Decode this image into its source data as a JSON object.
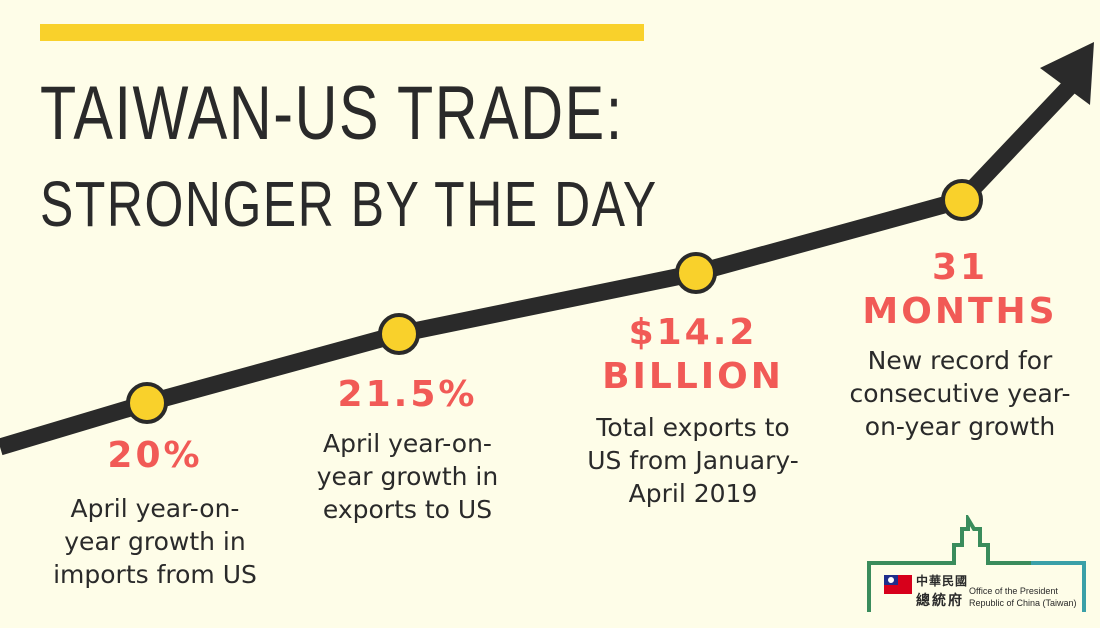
{
  "title": {
    "line1": "TAIWAN-US TRADE:",
    "line2": "STRONGER BY THE DAY"
  },
  "stats": [
    {
      "value": "20%",
      "description": [
        "April year-on-",
        "year growth in",
        "imports from US"
      ]
    },
    {
      "value": "21.5%",
      "description": [
        "April year-on-",
        "year growth in",
        "exports to US"
      ]
    },
    {
      "value": [
        "$14.2",
        "BILLION"
      ],
      "description": [
        "Total exports to",
        "US from January-",
        "April 2019"
      ]
    },
    {
      "value": "31 MONTHS",
      "description": [
        "New record for",
        "consecutive year-",
        "on-year growth"
      ]
    }
  ],
  "logo": {
    "chinese_line1": "中華民國",
    "chinese_line2": "總統府",
    "english_line1": "Office of the President",
    "english_line2": "Republic of China (Taiwan)"
  },
  "colors": {
    "background": "#fefde8",
    "accent_yellow": "#f9d12b",
    "highlight_red": "#f15a56",
    "dark_text": "#2a2a2a",
    "logo_green": "#3a8c5c",
    "logo_teal": "#3aa0a8",
    "flag_red": "#d7001b",
    "flag_blue": "#1f2e8b"
  }
}
